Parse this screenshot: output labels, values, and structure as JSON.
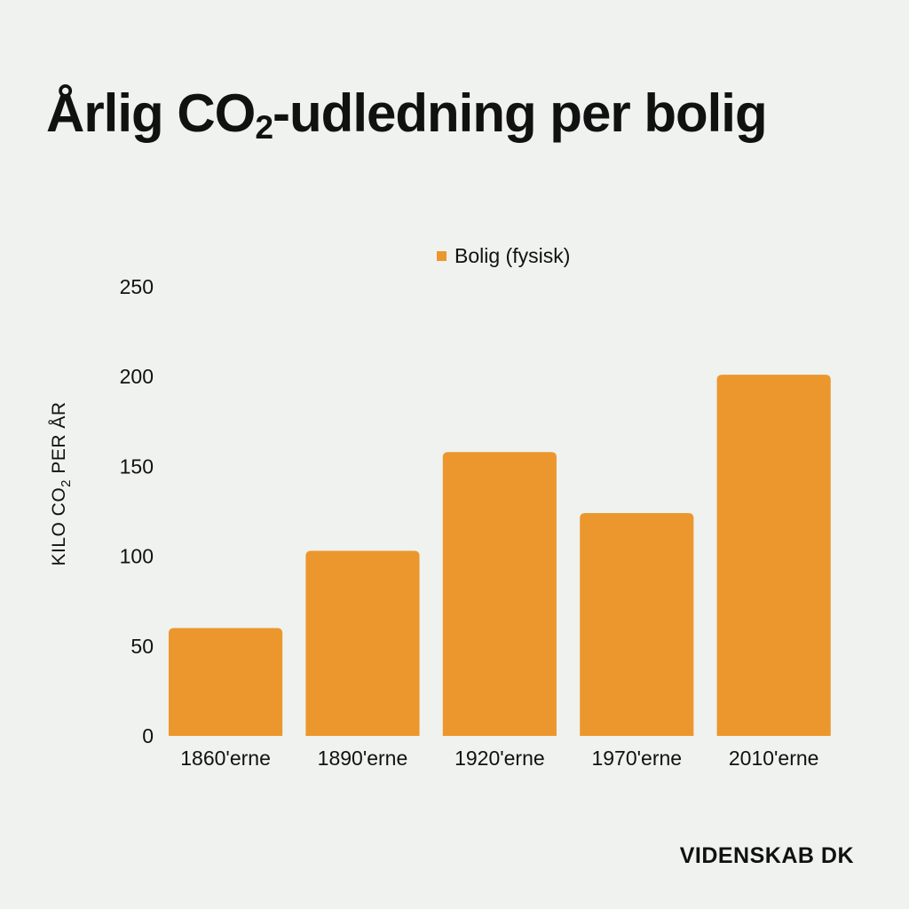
{
  "title": {
    "main": "Årlig CO",
    "sub": "2",
    "rest": "-udledning per bolig"
  },
  "logo": {
    "text": "VIDENSKAB DK"
  },
  "colors": {
    "bar": "#ec972d",
    "background": "#eff2ee",
    "text": "#111111"
  },
  "chart_data": {
    "type": "bar",
    "title": "Årlig CO2-udledning per bolig",
    "categories": [
      "1860'erne",
      "1890'erne",
      "1920'erne",
      "1970'erne",
      "2010'erne"
    ],
    "series": [
      {
        "name": "Bolig (fysisk)",
        "values": [
          60,
          103,
          158,
          124,
          201
        ]
      }
    ],
    "ylabel": {
      "main": "KILO CO",
      "sub": "2",
      "rest": " PER ÅR"
    },
    "ylim": [
      0,
      250
    ],
    "yticks": [
      0,
      50,
      100,
      150,
      200,
      250
    ],
    "grid": false,
    "legend_position": "top-center"
  }
}
